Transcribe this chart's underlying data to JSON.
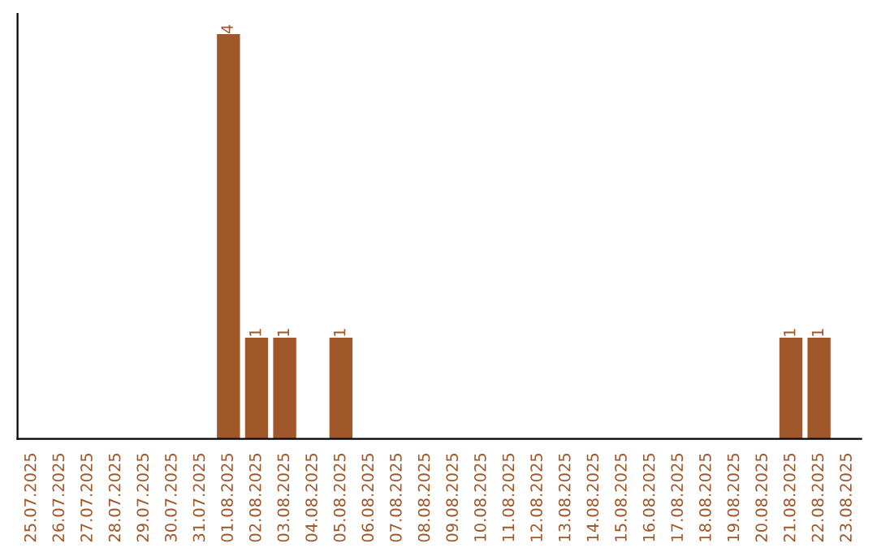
{
  "chart_data": {
    "type": "bar",
    "categories": [
      "25.07.2025",
      "26.07.2025",
      "27.07.2025",
      "28.07.2025",
      "29.07.2025",
      "30.07.2025",
      "31.07.2025",
      "01.08.2025",
      "02.08.2025",
      "03.08.2025",
      "04.08.2025",
      "05.08.2025",
      "06.08.2025",
      "07.08.2025",
      "08.08.2025",
      "09.08.2025",
      "10.08.2025",
      "11.08.2025",
      "12.08.2025",
      "13.08.2025",
      "14.08.2025",
      "15.08.2025",
      "16.08.2025",
      "17.08.2025",
      "18.08.2025",
      "19.08.2025",
      "20.08.2025",
      "21.08.2025",
      "22.08.2025",
      "23.08.2025"
    ],
    "values": [
      0,
      0,
      0,
      0,
      0,
      0,
      0,
      4,
      1,
      1,
      0,
      1,
      0,
      0,
      0,
      0,
      0,
      0,
      0,
      0,
      0,
      0,
      0,
      0,
      0,
      0,
      0,
      1,
      1,
      0
    ],
    "value_labels": [
      null,
      null,
      null,
      null,
      null,
      null,
      null,
      "4",
      "1",
      "1",
      null,
      "1",
      null,
      null,
      null,
      null,
      null,
      null,
      null,
      null,
      null,
      null,
      null,
      null,
      null,
      null,
      null,
      "1",
      "1",
      null
    ],
    "color": "#a0572a",
    "tick_labels": "x",
    "grid": false
  }
}
